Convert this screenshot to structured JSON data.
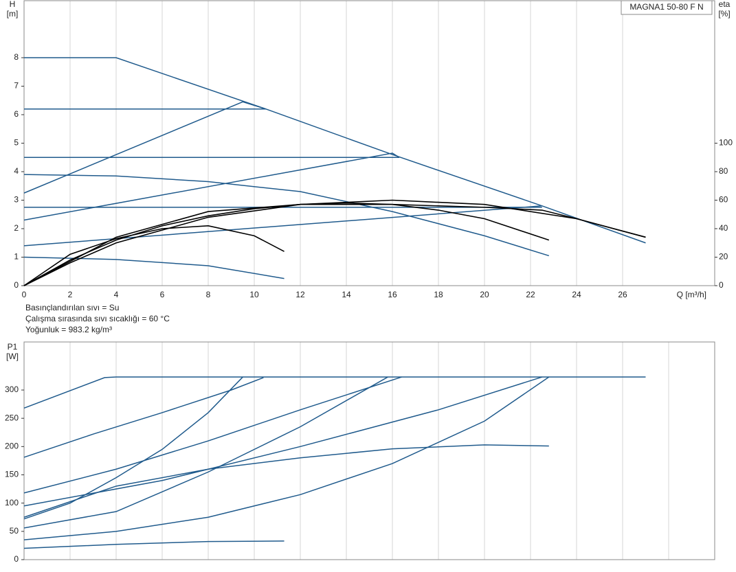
{
  "chart_data": [
    {
      "type": "line",
      "title": "MAGNA1 50-80 F N",
      "ylabel": "H",
      "yunit": "[m]",
      "y2label": "eta",
      "y2unit": "[%]",
      "xlabel": "Q [m³/h]",
      "xlim": [
        0,
        30
      ],
      "ylim": [
        0,
        10
      ],
      "y2lim": [
        0,
        200
      ],
      "xticks": [
        0,
        2,
        4,
        6,
        8,
        10,
        12,
        14,
        16,
        18,
        20,
        22,
        24,
        26
      ],
      "yticks": [
        0,
        1,
        2,
        3,
        4,
        5,
        6,
        7,
        8
      ],
      "y2ticks": [
        0,
        20,
        40,
        60,
        80,
        100
      ],
      "grid": true,
      "annotations": [
        "Basınçlandırılan sıvı = Su",
        "Çalışma sırasında sıvı sıcaklığı = 60 °C",
        "Yoğunluk = 983.2 kg/m³"
      ],
      "series": [
        {
          "color": "#1f5a8c",
          "x": [
            0,
            4,
            10.5,
            16,
            22.5,
            27
          ],
          "values": [
            8,
            8,
            6.2,
            4.6,
            2.8,
            1.5
          ]
        },
        {
          "color": "#1f5a8c",
          "x": [
            0,
            10.5
          ],
          "values": [
            6.2,
            6.2
          ]
        },
        {
          "color": "#1f5a8c",
          "x": [
            0,
            16.3
          ],
          "values": [
            4.5,
            4.5
          ]
        },
        {
          "color": "#1f5a8c",
          "x": [
            0,
            22.5
          ],
          "values": [
            2.75,
            2.75
          ]
        },
        {
          "color": "#1f5a8c",
          "x": [
            0,
            9.5,
            10.5
          ],
          "values": [
            3.25,
            6.45,
            6.2
          ]
        },
        {
          "color": "#1f5a8c",
          "x": [
            0,
            16,
            16.3
          ],
          "values": [
            2.3,
            4.65,
            4.5
          ]
        },
        {
          "color": "#1f5a8c",
          "x": [
            0,
            22.5
          ],
          "values": [
            1.4,
            2.8
          ]
        },
        {
          "color": "#1f5a8c",
          "x": [
            0,
            4,
            8,
            12,
            16,
            20,
            22.8
          ],
          "values": [
            3.9,
            3.85,
            3.65,
            3.3,
            2.6,
            1.75,
            1.05
          ]
        },
        {
          "color": "#1f5a8c",
          "x": [
            0,
            4,
            8,
            11.3
          ],
          "values": [
            1,
            0.92,
            0.7,
            0.25
          ]
        },
        {
          "color": "#000000",
          "axis": "y2",
          "x": [
            0,
            2,
            4,
            6,
            8,
            10,
            11.3
          ],
          "values": [
            0,
            22,
            33,
            40,
            42,
            35,
            24
          ]
        },
        {
          "color": "#000000",
          "axis": "y2",
          "x": [
            0,
            2,
            4,
            6,
            8,
            10,
            12,
            14,
            16,
            18,
            20,
            22.8
          ],
          "values": [
            0,
            18,
            32,
            42,
            49,
            54,
            57,
            58,
            57,
            53,
            47,
            32
          ]
        },
        {
          "color": "#000000",
          "axis": "y2",
          "x": [
            0,
            2,
            4,
            8,
            12,
            16,
            20,
            24,
            27
          ],
          "values": [
            0,
            16,
            30,
            48,
            57,
            60,
            57,
            47,
            34
          ]
        },
        {
          "color": "#000000",
          "axis": "y2",
          "x": [
            0,
            4,
            8,
            12,
            16,
            20,
            22.5,
            24,
            27
          ],
          "values": [
            0,
            34,
            52,
            57,
            57,
            55,
            53,
            47,
            34
          ]
        }
      ]
    },
    {
      "type": "line",
      "ylabel": "P1",
      "yunit": "[W]",
      "xlim": [
        0,
        30
      ],
      "ylim": [
        0,
        385
      ],
      "xgrid": [
        0,
        2,
        4,
        6,
        8,
        10,
        12,
        14,
        16,
        18,
        20,
        22,
        24,
        26,
        28
      ],
      "yticks": [
        0,
        50,
        100,
        150,
        200,
        250,
        300
      ],
      "series": [
        {
          "color": "#1f5a8c",
          "x": [
            0,
            3.5,
            4,
            27
          ],
          "values": [
            268,
            322,
            323,
            323
          ]
        },
        {
          "color": "#1f5a8c",
          "x": [
            0,
            3,
            6,
            9,
            10.4
          ],
          "values": [
            181,
            222,
            260,
            300,
            322
          ]
        },
        {
          "color": "#1f5a8c",
          "x": [
            0,
            2,
            4,
            6,
            8,
            9.5
          ],
          "values": [
            72,
            100,
            145,
            195,
            260,
            323
          ]
        },
        {
          "color": "#1f5a8c",
          "x": [
            0,
            4,
            8,
            12,
            16.4
          ],
          "values": [
            118,
            160,
            210,
            265,
            323
          ]
        },
        {
          "color": "#1f5a8c",
          "x": [
            0,
            4,
            8,
            12,
            15.8
          ],
          "values": [
            56,
            85,
            155,
            235,
            323
          ]
        },
        {
          "color": "#1f5a8c",
          "x": [
            0,
            6,
            12,
            18,
            22.5
          ],
          "values": [
            95,
            140,
            200,
            265,
            323
          ]
        },
        {
          "color": "#1f5a8c",
          "x": [
            0,
            4,
            8,
            12,
            16,
            20,
            22.8
          ],
          "values": [
            35,
            50,
            75,
            115,
            170,
            245,
            323
          ]
        },
        {
          "color": "#1f5a8c",
          "x": [
            0,
            4,
            8,
            12,
            16,
            20,
            22.8
          ],
          "values": [
            75,
            130,
            160,
            180,
            196,
            203,
            201
          ]
        },
        {
          "color": "#1f5a8c",
          "x": [
            0,
            4,
            8,
            11.3
          ],
          "values": [
            20,
            27,
            32,
            33
          ]
        }
      ]
    }
  ]
}
